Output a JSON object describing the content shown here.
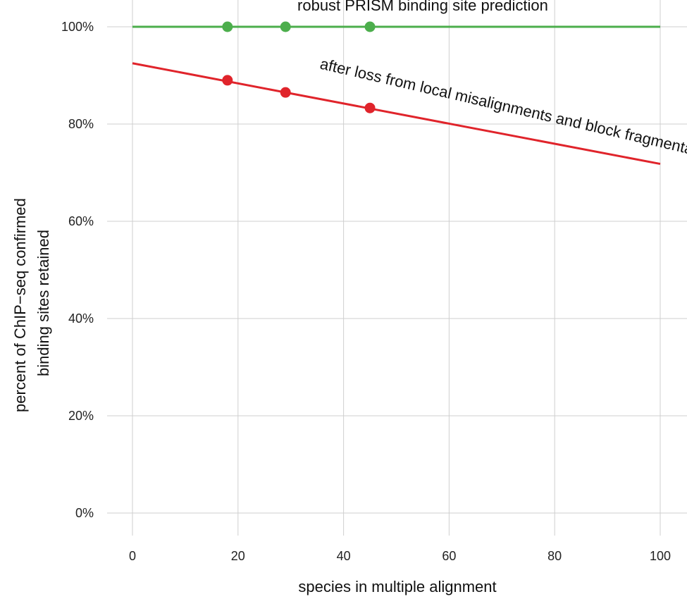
{
  "chart_data": {
    "type": "line",
    "xlabel": "species in multiple alignment",
    "ylabel_lines": [
      "percent of ChIP−seq confirmed",
      "binding sites retained"
    ],
    "xlim": [
      0,
      100
    ],
    "ylim": [
      0,
      100
    ],
    "x_ticks": [
      0,
      20,
      40,
      60,
      80,
      100
    ],
    "x_tick_labels": [
      "0",
      "20",
      "40",
      "60",
      "80",
      "100"
    ],
    "y_ticks": [
      0,
      20,
      40,
      60,
      80,
      100
    ],
    "y_tick_labels": [
      "0%",
      "20%",
      "40%",
      "60%",
      "80%",
      "100%"
    ],
    "grid": true,
    "series": [
      {
        "color": "#4cae4c",
        "line": {
          "x": [
            0,
            100
          ],
          "y": [
            100,
            100
          ]
        },
        "points": {
          "x": [
            18,
            29,
            45
          ],
          "y": [
            100,
            100,
            100
          ]
        }
      },
      {
        "color": "#e0242b",
        "line": {
          "x": [
            0,
            100
          ],
          "y": [
            92.5,
            71.8
          ]
        },
        "points": {
          "x": [
            18,
            29,
            45
          ],
          "y": [
            89,
            86.5,
            83.3
          ]
        }
      }
    ],
    "annotations": [
      {
        "text": "robust PRISM binding site prediction",
        "x": 55,
        "y": 103.3,
        "angle": 0
      },
      {
        "text": "after loss from local misalignments and block fragmentation",
        "x": 73,
        "y": 82,
        "angle": 13
      }
    ]
  }
}
